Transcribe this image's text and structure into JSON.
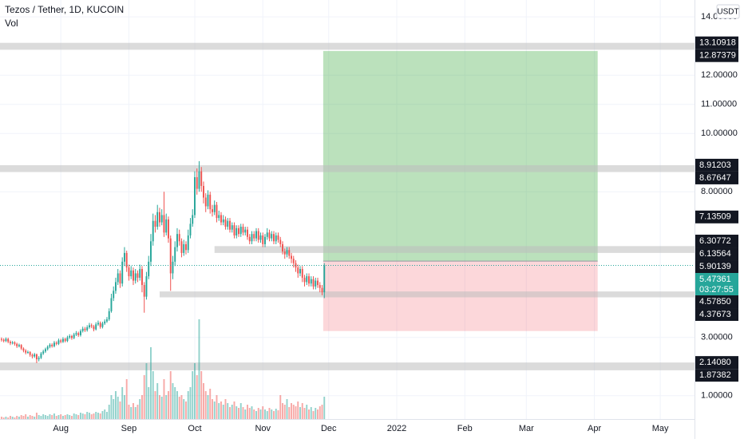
{
  "chart_data": {
    "type": "candlestick",
    "title": "Tezos / Tether, 1D, KUCOIN",
    "indicator": "Vol",
    "currency": "USDT",
    "up_color": "#26a69a",
    "down_color": "#ef5350",
    "grid": true,
    "xlim": [
      -0.7,
      315.6
    ],
    "ylim": [
      0.2,
      14.58
    ],
    "xticks": [
      {
        "value": 27,
        "label": "Aug"
      },
      {
        "value": 58,
        "label": "Sep"
      },
      {
        "value": 88,
        "label": "Oct"
      },
      {
        "value": 119,
        "label": "Nov"
      },
      {
        "value": 149,
        "label": "Dec"
      },
      {
        "value": 180,
        "label": "2022"
      },
      {
        "value": 211,
        "label": "Feb"
      },
      {
        "value": 239,
        "label": "Mar"
      },
      {
        "value": 270,
        "label": "Apr"
      },
      {
        "value": 300,
        "label": "May"
      }
    ],
    "yticks": [
      {
        "value": 1,
        "label": "1.00000"
      },
      {
        "value": 3,
        "label": "3.00000"
      },
      {
        "value": 8,
        "label": "8.00000"
      },
      {
        "value": 10,
        "label": "10.00000"
      },
      {
        "value": 11,
        "label": "11.00000"
      },
      {
        "value": 12,
        "label": "12.00000"
      },
      {
        "value": 14,
        "label": "14.00000"
      }
    ],
    "open": [
      2.95,
      2.92,
      2.88,
      2.95,
      2.85,
      2.8,
      2.83,
      2.78,
      2.7,
      2.74,
      2.62,
      2.55,
      2.48,
      2.5,
      2.4,
      2.35,
      2.42,
      2.25,
      2.3,
      2.45,
      2.52,
      2.6,
      2.68,
      2.75,
      2.7,
      2.82,
      2.78,
      2.9,
      2.85,
      2.95,
      2.88,
      3.0,
      3.05,
      2.98,
      3.1,
      3.15,
      3.08,
      3.22,
      3.3,
      3.25,
      3.35,
      3.42,
      3.38,
      3.28,
      3.45,
      3.5,
      3.36,
      3.48,
      3.55,
      3.62,
      3.9,
      4.35,
      4.6,
      4.9,
      5.2,
      4.85,
      5.6,
      5.9,
      5.4,
      5.1,
      5.3,
      4.95,
      5.2,
      5.05,
      5.35,
      4.8,
      4.4,
      5.1,
      5.6,
      6.3,
      7.0,
      6.8,
      7.3,
      6.95,
      7.2,
      6.6,
      7.05,
      6.4,
      5.2,
      5.6,
      6.1,
      6.55,
      6.3,
      5.9,
      6.2,
      6.0,
      6.5,
      6.9,
      7.2,
      8.5,
      8.1,
      8.7,
      8.2,
      7.8,
      7.5,
      7.9,
      7.4,
      7.3,
      7.55,
      7.1,
      7.2,
      6.95,
      7.05,
      6.8,
      7.0,
      6.7,
      6.85,
      6.5,
      6.75,
      6.55,
      6.8,
      6.6,
      6.7,
      6.45,
      6.3,
      6.55,
      6.4,
      6.65,
      6.35,
      6.5,
      6.2,
      6.45,
      6.6,
      6.4,
      6.55,
      6.3,
      6.5,
      6.35,
      6.2,
      5.95,
      5.85,
      6.0,
      5.8,
      5.7,
      5.55,
      5.4,
      5.2,
      5.35,
      5.05,
      4.9,
      5.1,
      4.85,
      5.0,
      4.75,
      4.95,
      4.8,
      4.7,
      4.55
    ],
    "high": [
      3.0,
      2.97,
      3.0,
      2.99,
      2.9,
      2.88,
      2.87,
      2.82,
      2.79,
      2.77,
      2.66,
      2.6,
      2.55,
      2.53,
      2.45,
      2.47,
      2.45,
      2.36,
      2.5,
      2.58,
      2.65,
      2.73,
      2.8,
      2.8,
      2.88,
      2.87,
      2.96,
      2.95,
      3.01,
      2.99,
      3.06,
      3.11,
      3.09,
      3.16,
      3.22,
      3.2,
      3.28,
      3.37,
      3.36,
      3.42,
      3.5,
      3.48,
      3.43,
      3.52,
      3.58,
      3.55,
      3.54,
      3.62,
      3.7,
      4.0,
      4.5,
      4.75,
      5.05,
      5.35,
      5.3,
      5.75,
      6.1,
      5.98,
      5.5,
      5.45,
      5.4,
      5.35,
      5.3,
      5.5,
      5.45,
      4.9,
      5.25,
      5.8,
      6.55,
      7.25,
      7.2,
      7.55,
      7.45,
      7.4,
      8.0,
      7.25,
      7.15,
      6.5,
      5.8,
      6.3,
      6.75,
      6.7,
      6.4,
      6.35,
      6.3,
      6.7,
      7.1,
      7.4,
      8.7,
      8.8,
      9.05,
      8.85,
      8.35,
      7.95,
      8.05,
      8.0,
      7.55,
      7.7,
      7.65,
      7.35,
      7.3,
      7.2,
      7.15,
      7.1,
      7.1,
      6.95,
      6.95,
      6.85,
      6.85,
      6.9,
      6.9,
      6.8,
      6.8,
      6.55,
      6.65,
      6.65,
      6.75,
      6.75,
      6.6,
      6.6,
      6.55,
      6.75,
      6.7,
      6.65,
      6.65,
      6.6,
      6.6,
      6.45,
      6.3,
      6.05,
      6.1,
      6.1,
      5.9,
      5.8,
      5.65,
      5.5,
      5.45,
      5.45,
      5.15,
      5.2,
      5.2,
      5.1,
      5.1,
      5.05,
      5.05,
      4.9,
      4.8,
      5.55
    ],
    "low": [
      2.86,
      2.83,
      2.84,
      2.8,
      2.74,
      2.76,
      2.72,
      2.64,
      2.66,
      2.57,
      2.49,
      2.42,
      2.44,
      2.34,
      2.28,
      2.3,
      2.12,
      2.18,
      2.26,
      2.4,
      2.47,
      2.55,
      2.63,
      2.65,
      2.66,
      2.73,
      2.74,
      2.8,
      2.81,
      2.83,
      2.84,
      2.95,
      2.92,
      2.94,
      3.05,
      3.02,
      3.03,
      3.17,
      3.19,
      3.2,
      3.3,
      3.32,
      3.21,
      3.24,
      3.4,
      3.3,
      3.31,
      3.43,
      3.5,
      3.57,
      3.85,
      4.25,
      4.5,
      4.8,
      4.7,
      4.75,
      5.45,
      5.25,
      4.95,
      5.0,
      4.8,
      4.85,
      4.9,
      4.95,
      4.55,
      3.85,
      4.3,
      5.0,
      5.45,
      6.15,
      6.6,
      6.7,
      6.8,
      6.85,
      6.45,
      6.5,
      6.25,
      4.6,
      5.0,
      5.45,
      5.95,
      6.15,
      5.75,
      5.8,
      5.85,
      5.9,
      6.4,
      6.8,
      7.1,
      7.9,
      8.0,
      8.0,
      7.6,
      7.3,
      7.4,
      7.25,
      7.15,
      7.2,
      6.95,
      7.0,
      6.85,
      6.85,
      6.7,
      6.7,
      6.6,
      6.6,
      6.4,
      6.4,
      6.45,
      6.45,
      6.5,
      6.5,
      6.35,
      6.2,
      6.2,
      6.3,
      6.3,
      6.25,
      6.25,
      6.1,
      6.1,
      6.35,
      6.3,
      6.3,
      6.2,
      6.2,
      6.25,
      6.1,
      5.85,
      5.7,
      5.75,
      5.7,
      5.55,
      5.4,
      5.25,
      5.05,
      5.1,
      4.9,
      4.75,
      4.8,
      4.75,
      4.75,
      4.65,
      4.65,
      4.7,
      4.55,
      4.45,
      4.35
    ],
    "close": [
      2.92,
      2.88,
      2.95,
      2.85,
      2.8,
      2.83,
      2.78,
      2.7,
      2.74,
      2.62,
      2.55,
      2.48,
      2.5,
      2.4,
      2.35,
      2.42,
      2.25,
      2.3,
      2.45,
      2.52,
      2.6,
      2.68,
      2.75,
      2.7,
      2.82,
      2.78,
      2.9,
      2.85,
      2.95,
      2.88,
      3.0,
      3.05,
      2.98,
      3.1,
      3.15,
      3.08,
      3.22,
      3.3,
      3.25,
      3.35,
      3.42,
      3.38,
      3.28,
      3.45,
      3.5,
      3.36,
      3.48,
      3.55,
      3.62,
      3.9,
      4.35,
      4.6,
      4.9,
      5.2,
      4.85,
      5.6,
      5.9,
      5.4,
      5.1,
      5.3,
      4.95,
      5.2,
      5.05,
      5.35,
      4.8,
      4.4,
      5.1,
      5.6,
      6.3,
      7.0,
      6.8,
      7.3,
      6.95,
      7.2,
      6.6,
      7.05,
      6.4,
      5.2,
      5.6,
      6.1,
      6.55,
      6.3,
      5.9,
      6.2,
      6.0,
      6.5,
      6.9,
      7.2,
      8.5,
      8.1,
      8.7,
      8.2,
      7.8,
      7.5,
      7.9,
      7.4,
      7.3,
      7.55,
      7.1,
      7.2,
      6.95,
      7.05,
      6.8,
      7.0,
      6.7,
      6.85,
      6.5,
      6.75,
      6.55,
      6.8,
      6.6,
      6.7,
      6.45,
      6.3,
      6.55,
      6.4,
      6.65,
      6.35,
      6.5,
      6.2,
      6.45,
      6.6,
      6.4,
      6.55,
      6.3,
      6.5,
      6.35,
      6.2,
      5.95,
      5.85,
      6.0,
      5.8,
      5.7,
      5.55,
      5.4,
      5.2,
      5.35,
      5.05,
      4.9,
      5.1,
      4.85,
      5.0,
      4.75,
      4.95,
      4.8,
      4.7,
      4.55,
      5.47
    ],
    "volume": [
      3,
      2,
      3,
      2,
      4,
      3,
      2,
      4,
      3,
      5,
      4,
      6,
      3,
      5,
      4,
      3,
      8,
      5,
      4,
      6,
      5,
      4,
      6,
      5,
      7,
      4,
      5,
      6,
      4,
      5,
      6,
      5,
      4,
      7,
      6,
      5,
      8,
      7,
      6,
      9,
      8,
      6,
      7,
      9,
      8,
      7,
      10,
      12,
      9,
      18,
      30,
      25,
      35,
      28,
      22,
      40,
      30,
      50,
      18,
      15,
      20,
      15,
      18,
      25,
      30,
      55,
      70,
      40,
      90,
      60,
      35,
      45,
      30,
      28,
      50,
      30,
      35,
      60,
      45,
      40,
      35,
      28,
      30,
      25,
      22,
      35,
      40,
      60,
      70,
      55,
      125,
      60,
      45,
      35,
      30,
      38,
      25,
      22,
      30,
      20,
      22,
      18,
      25,
      20,
      15,
      18,
      22,
      16,
      14,
      20,
      15,
      12,
      18,
      14,
      16,
      12,
      10,
      14,
      12,
      16,
      12,
      10,
      14,
      12,
      10,
      13,
      11,
      30,
      20,
      18,
      25,
      15,
      20,
      18,
      16,
      22,
      15,
      20,
      14,
      18,
      12,
      15,
      10,
      14,
      12,
      16,
      18,
      28
    ],
    "zones": [
      {
        "start": -0.7,
        "top": {
          "value": 13.10918,
          "label": "13.10918"
        },
        "bottom": {
          "value": 12.87379,
          "label": "12.87379"
        }
      },
      {
        "start": -0.7,
        "top": {
          "value": 8.91203,
          "label": "8.91203"
        },
        "bottom": {
          "value": 8.67647,
          "label": "8.67647"
        }
      },
      {
        "start": 97,
        "top": {
          "value": 6.13564,
          "label": "6.13564"
        },
        "bottom": {
          "value": 5.90139,
          "label": "5.90139"
        }
      },
      {
        "start": 72,
        "top": {
          "value": 4.5785,
          "label": "4.57850"
        },
        "bottom": {
          "value": 4.37673,
          "label": "4.37673"
        }
      },
      {
        "start": -0.7,
        "top": {
          "value": 2.1408,
          "label": "2.14080"
        },
        "bottom": {
          "value": 1.87382,
          "label": "1.87382"
        }
      }
    ],
    "markers": [
      {
        "value": 7.13509,
        "label": "7.13509"
      },
      {
        "value": 6.30772,
        "label": "6.30772"
      }
    ],
    "last_price": {
      "value": 5.47361,
      "label": "5.47361"
    },
    "countdown": "03:27:55",
    "position": {
      "start": 146.5,
      "end": 271.5,
      "target": 12.83,
      "entry": 5.62,
      "stop": 3.22
    }
  }
}
